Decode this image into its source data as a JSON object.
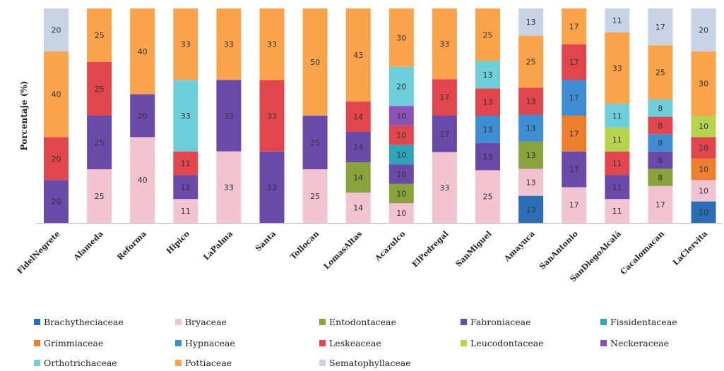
{
  "chart_data": {
    "type": "bar",
    "stacked": true,
    "percent": true,
    "ylabel": "Porcentaje (%)",
    "ylim": [
      0,
      100
    ],
    "grid": false,
    "legend_position": "bottom",
    "categories": [
      "FidelNegrete",
      "Alameda",
      "Reforma",
      "Hipico",
      "LaPalma",
      "Santa",
      "Tollocan",
      "LomasAltas",
      "Acazulco",
      "ElPedregal",
      "SanMiguel",
      "Amayuca",
      "SanAntonio",
      "SanDiegoAlcalá",
      "Cacalomacan",
      "LaCiervita"
    ],
    "families": [
      {
        "name": "Brachytheciaceae",
        "color": "#2a6fb5"
      },
      {
        "name": "Bryaceae",
        "color": "#f2c4d2"
      },
      {
        "name": "Entodontaceae",
        "color": "#8aa23c"
      },
      {
        "name": "Fabroniaceae",
        "color": "#6a4aa8"
      },
      {
        "name": "Fissidentaceae",
        "color": "#2fa3b8"
      },
      {
        "name": "Grimmiaceae",
        "color": "#ee7f2c"
      },
      {
        "name": "Hypnaceae",
        "color": "#3f8ed4"
      },
      {
        "name": "Leskeaceae",
        "color": "#e2464d"
      },
      {
        "name": "Leucodontaceae",
        "color": "#b7d24c"
      },
      {
        "name": "Neckeraceae",
        "color": "#8a52b8"
      },
      {
        "name": "Orthotrichaceae",
        "color": "#6ccfd9"
      },
      {
        "name": "Pottiaceae",
        "color": "#f9a34a"
      },
      {
        "name": "Sematophyllaceae",
        "color": "#c7d3e6"
      }
    ],
    "stacks": [
      [
        {
          "f": "Fabroniaceae",
          "v": 20
        },
        {
          "f": "Leskeaceae",
          "v": 20
        },
        {
          "f": "Pottiaceae",
          "v": 40
        },
        {
          "f": "Sematophyllaceae",
          "v": 20
        }
      ],
      [
        {
          "f": "Bryaceae",
          "v": 25
        },
        {
          "f": "Fabroniaceae",
          "v": 25
        },
        {
          "f": "Leskeaceae",
          "v": 25
        },
        {
          "f": "Pottiaceae",
          "v": 25
        }
      ],
      [
        {
          "f": "Bryaceae",
          "v": 40
        },
        {
          "f": "Fabroniaceae",
          "v": 20
        },
        {
          "f": "Pottiaceae",
          "v": 40
        }
      ],
      [
        {
          "f": "Bryaceae",
          "v": 11
        },
        {
          "f": "Fabroniaceae",
          "v": 11
        },
        {
          "f": "Leskeaceae",
          "v": 11
        },
        {
          "f": "Orthotrichaceae",
          "v": 33
        },
        {
          "f": "Pottiaceae",
          "v": 33
        }
      ],
      [
        {
          "f": "Bryaceae",
          "v": 33
        },
        {
          "f": "Fabroniaceae",
          "v": 33
        },
        {
          "f": "Pottiaceae",
          "v": 33
        }
      ],
      [
        {
          "f": "Fabroniaceae",
          "v": 33
        },
        {
          "f": "Leskeaceae",
          "v": 33
        },
        {
          "f": "Pottiaceae",
          "v": 33
        }
      ],
      [
        {
          "f": "Bryaceae",
          "v": 25
        },
        {
          "f": "Fabroniaceae",
          "v": 25
        },
        {
          "f": "Pottiaceae",
          "v": 50
        }
      ],
      [
        {
          "f": "Bryaceae",
          "v": 14
        },
        {
          "f": "Entodontaceae",
          "v": 14
        },
        {
          "f": "Fabroniaceae",
          "v": 14
        },
        {
          "f": "Leskeaceae",
          "v": 14
        },
        {
          "f": "Pottiaceae",
          "v": 43
        }
      ],
      [
        {
          "f": "Bryaceae",
          "v": 10
        },
        {
          "f": "Entodontaceae",
          "v": 10
        },
        {
          "f": "Fabroniaceae",
          "v": 10
        },
        {
          "f": "Fissidentaceae",
          "v": 10
        },
        {
          "f": "Leskeaceae",
          "v": 10
        },
        {
          "f": "Neckeraceae",
          "v": 10
        },
        {
          "f": "Orthotrichaceae",
          "v": 20
        },
        {
          "f": "Pottiaceae",
          "v": 30
        }
      ],
      [
        {
          "f": "Bryaceae",
          "v": 33
        },
        {
          "f": "Fabroniaceae",
          "v": 17
        },
        {
          "f": "Leskeaceae",
          "v": 17
        },
        {
          "f": "Pottiaceae",
          "v": 33
        }
      ],
      [
        {
          "f": "Bryaceae",
          "v": 25
        },
        {
          "f": "Fabroniaceae",
          "v": 13
        },
        {
          "f": "Hypnaceae",
          "v": 13
        },
        {
          "f": "Leskeaceae",
          "v": 13
        },
        {
          "f": "Orthotrichaceae",
          "v": 13
        },
        {
          "f": "Pottiaceae",
          "v": 25
        }
      ],
      [
        {
          "f": "Brachytheciaceae",
          "v": 13
        },
        {
          "f": "Bryaceae",
          "v": 13
        },
        {
          "f": "Entodontaceae",
          "v": 13
        },
        {
          "f": "Hypnaceae",
          "v": 13
        },
        {
          "f": "Leskeaceae",
          "v": 13
        },
        {
          "f": "Pottiaceae",
          "v": 25
        },
        {
          "f": "Sematophyllaceae",
          "v": 13
        }
      ],
      [
        {
          "f": "Bryaceae",
          "v": 17
        },
        {
          "f": "Fabroniaceae",
          "v": 17
        },
        {
          "f": "Grimmiaceae",
          "v": 17
        },
        {
          "f": "Hypnaceae",
          "v": 17
        },
        {
          "f": "Leskeaceae",
          "v": 17
        },
        {
          "f": "Pottiaceae",
          "v": 17
        }
      ],
      [
        {
          "f": "Bryaceae",
          "v": 11
        },
        {
          "f": "Fabroniaceae",
          "v": 11
        },
        {
          "f": "Leskeaceae",
          "v": 11
        },
        {
          "f": "Leucodontaceae",
          "v": 11
        },
        {
          "f": "Orthotrichaceae",
          "v": 11
        },
        {
          "f": "Pottiaceae",
          "v": 33
        },
        {
          "f": "Sematophyllaceae",
          "v": 11
        }
      ],
      [
        {
          "f": "Bryaceae",
          "v": 17
        },
        {
          "f": "Entodontaceae",
          "v": 8
        },
        {
          "f": "Fabroniaceae",
          "v": 8
        },
        {
          "f": "Hypnaceae",
          "v": 8
        },
        {
          "f": "Leskeaceae",
          "v": 8
        },
        {
          "f": "Orthotrichaceae",
          "v": 8
        },
        {
          "f": "Pottiaceae",
          "v": 25
        },
        {
          "f": "Sematophyllaceae",
          "v": 17
        }
      ],
      [
        {
          "f": "Brachytheciaceae",
          "v": 10
        },
        {
          "f": "Bryaceae",
          "v": 10
        },
        {
          "f": "Grimmiaceae",
          "v": 10
        },
        {
          "f": "Leskeaceae",
          "v": 10
        },
        {
          "f": "Leucodontaceae",
          "v": 10
        },
        {
          "f": "Pottiaceae",
          "v": 30
        },
        {
          "f": "Sematophyllaceae",
          "v": 20
        }
      ]
    ]
  }
}
